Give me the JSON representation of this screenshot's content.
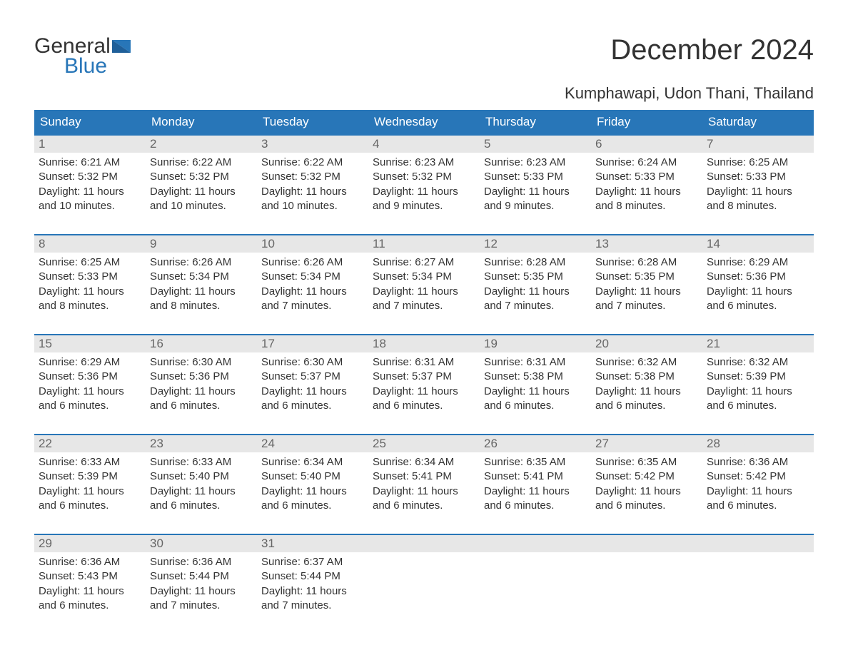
{
  "logo": {
    "word1": "General",
    "word2": "Blue",
    "flag_color": "#2876b8",
    "text_dark": "#333333"
  },
  "title": "December 2024",
  "location": "Kumphawapi, Udon Thani, Thailand",
  "colors": {
    "header_bg": "#2876b8",
    "header_text": "#ffffff",
    "daynum_bg": "#e7e7e7",
    "daynum_text": "#666666",
    "body_text": "#333333",
    "week_rule": "#2876b8",
    "page_bg": "#ffffff"
  },
  "typography": {
    "title_fontsize": 40,
    "location_fontsize": 22,
    "dow_fontsize": 17,
    "daynum_fontsize": 17,
    "body_fontsize": 15
  },
  "days_of_week": [
    "Sunday",
    "Monday",
    "Tuesday",
    "Wednesday",
    "Thursday",
    "Friday",
    "Saturday"
  ],
  "weeks": [
    [
      {
        "n": "1",
        "sunrise": "Sunrise: 6:21 AM",
        "sunset": "Sunset: 5:32 PM",
        "daylight1": "Daylight: 11 hours",
        "daylight2": "and 10 minutes."
      },
      {
        "n": "2",
        "sunrise": "Sunrise: 6:22 AM",
        "sunset": "Sunset: 5:32 PM",
        "daylight1": "Daylight: 11 hours",
        "daylight2": "and 10 minutes."
      },
      {
        "n": "3",
        "sunrise": "Sunrise: 6:22 AM",
        "sunset": "Sunset: 5:32 PM",
        "daylight1": "Daylight: 11 hours",
        "daylight2": "and 10 minutes."
      },
      {
        "n": "4",
        "sunrise": "Sunrise: 6:23 AM",
        "sunset": "Sunset: 5:32 PM",
        "daylight1": "Daylight: 11 hours",
        "daylight2": "and 9 minutes."
      },
      {
        "n": "5",
        "sunrise": "Sunrise: 6:23 AM",
        "sunset": "Sunset: 5:33 PM",
        "daylight1": "Daylight: 11 hours",
        "daylight2": "and 9 minutes."
      },
      {
        "n": "6",
        "sunrise": "Sunrise: 6:24 AM",
        "sunset": "Sunset: 5:33 PM",
        "daylight1": "Daylight: 11 hours",
        "daylight2": "and 8 minutes."
      },
      {
        "n": "7",
        "sunrise": "Sunrise: 6:25 AM",
        "sunset": "Sunset: 5:33 PM",
        "daylight1": "Daylight: 11 hours",
        "daylight2": "and 8 minutes."
      }
    ],
    [
      {
        "n": "8",
        "sunrise": "Sunrise: 6:25 AM",
        "sunset": "Sunset: 5:33 PM",
        "daylight1": "Daylight: 11 hours",
        "daylight2": "and 8 minutes."
      },
      {
        "n": "9",
        "sunrise": "Sunrise: 6:26 AM",
        "sunset": "Sunset: 5:34 PM",
        "daylight1": "Daylight: 11 hours",
        "daylight2": "and 8 minutes."
      },
      {
        "n": "10",
        "sunrise": "Sunrise: 6:26 AM",
        "sunset": "Sunset: 5:34 PM",
        "daylight1": "Daylight: 11 hours",
        "daylight2": "and 7 minutes."
      },
      {
        "n": "11",
        "sunrise": "Sunrise: 6:27 AM",
        "sunset": "Sunset: 5:34 PM",
        "daylight1": "Daylight: 11 hours",
        "daylight2": "and 7 minutes."
      },
      {
        "n": "12",
        "sunrise": "Sunrise: 6:28 AM",
        "sunset": "Sunset: 5:35 PM",
        "daylight1": "Daylight: 11 hours",
        "daylight2": "and 7 minutes."
      },
      {
        "n": "13",
        "sunrise": "Sunrise: 6:28 AM",
        "sunset": "Sunset: 5:35 PM",
        "daylight1": "Daylight: 11 hours",
        "daylight2": "and 7 minutes."
      },
      {
        "n": "14",
        "sunrise": "Sunrise: 6:29 AM",
        "sunset": "Sunset: 5:36 PM",
        "daylight1": "Daylight: 11 hours",
        "daylight2": "and 6 minutes."
      }
    ],
    [
      {
        "n": "15",
        "sunrise": "Sunrise: 6:29 AM",
        "sunset": "Sunset: 5:36 PM",
        "daylight1": "Daylight: 11 hours",
        "daylight2": "and 6 minutes."
      },
      {
        "n": "16",
        "sunrise": "Sunrise: 6:30 AM",
        "sunset": "Sunset: 5:36 PM",
        "daylight1": "Daylight: 11 hours",
        "daylight2": "and 6 minutes."
      },
      {
        "n": "17",
        "sunrise": "Sunrise: 6:30 AM",
        "sunset": "Sunset: 5:37 PM",
        "daylight1": "Daylight: 11 hours",
        "daylight2": "and 6 minutes."
      },
      {
        "n": "18",
        "sunrise": "Sunrise: 6:31 AM",
        "sunset": "Sunset: 5:37 PM",
        "daylight1": "Daylight: 11 hours",
        "daylight2": "and 6 minutes."
      },
      {
        "n": "19",
        "sunrise": "Sunrise: 6:31 AM",
        "sunset": "Sunset: 5:38 PM",
        "daylight1": "Daylight: 11 hours",
        "daylight2": "and 6 minutes."
      },
      {
        "n": "20",
        "sunrise": "Sunrise: 6:32 AM",
        "sunset": "Sunset: 5:38 PM",
        "daylight1": "Daylight: 11 hours",
        "daylight2": "and 6 minutes."
      },
      {
        "n": "21",
        "sunrise": "Sunrise: 6:32 AM",
        "sunset": "Sunset: 5:39 PM",
        "daylight1": "Daylight: 11 hours",
        "daylight2": "and 6 minutes."
      }
    ],
    [
      {
        "n": "22",
        "sunrise": "Sunrise: 6:33 AM",
        "sunset": "Sunset: 5:39 PM",
        "daylight1": "Daylight: 11 hours",
        "daylight2": "and 6 minutes."
      },
      {
        "n": "23",
        "sunrise": "Sunrise: 6:33 AM",
        "sunset": "Sunset: 5:40 PM",
        "daylight1": "Daylight: 11 hours",
        "daylight2": "and 6 minutes."
      },
      {
        "n": "24",
        "sunrise": "Sunrise: 6:34 AM",
        "sunset": "Sunset: 5:40 PM",
        "daylight1": "Daylight: 11 hours",
        "daylight2": "and 6 minutes."
      },
      {
        "n": "25",
        "sunrise": "Sunrise: 6:34 AM",
        "sunset": "Sunset: 5:41 PM",
        "daylight1": "Daylight: 11 hours",
        "daylight2": "and 6 minutes."
      },
      {
        "n": "26",
        "sunrise": "Sunrise: 6:35 AM",
        "sunset": "Sunset: 5:41 PM",
        "daylight1": "Daylight: 11 hours",
        "daylight2": "and 6 minutes."
      },
      {
        "n": "27",
        "sunrise": "Sunrise: 6:35 AM",
        "sunset": "Sunset: 5:42 PM",
        "daylight1": "Daylight: 11 hours",
        "daylight2": "and 6 minutes."
      },
      {
        "n": "28",
        "sunrise": "Sunrise: 6:36 AM",
        "sunset": "Sunset: 5:42 PM",
        "daylight1": "Daylight: 11 hours",
        "daylight2": "and 6 minutes."
      }
    ],
    [
      {
        "n": "29",
        "sunrise": "Sunrise: 6:36 AM",
        "sunset": "Sunset: 5:43 PM",
        "daylight1": "Daylight: 11 hours",
        "daylight2": "and 6 minutes."
      },
      {
        "n": "30",
        "sunrise": "Sunrise: 6:36 AM",
        "sunset": "Sunset: 5:44 PM",
        "daylight1": "Daylight: 11 hours",
        "daylight2": "and 7 minutes."
      },
      {
        "n": "31",
        "sunrise": "Sunrise: 6:37 AM",
        "sunset": "Sunset: 5:44 PM",
        "daylight1": "Daylight: 11 hours",
        "daylight2": "and 7 minutes."
      },
      null,
      null,
      null,
      null
    ]
  ]
}
